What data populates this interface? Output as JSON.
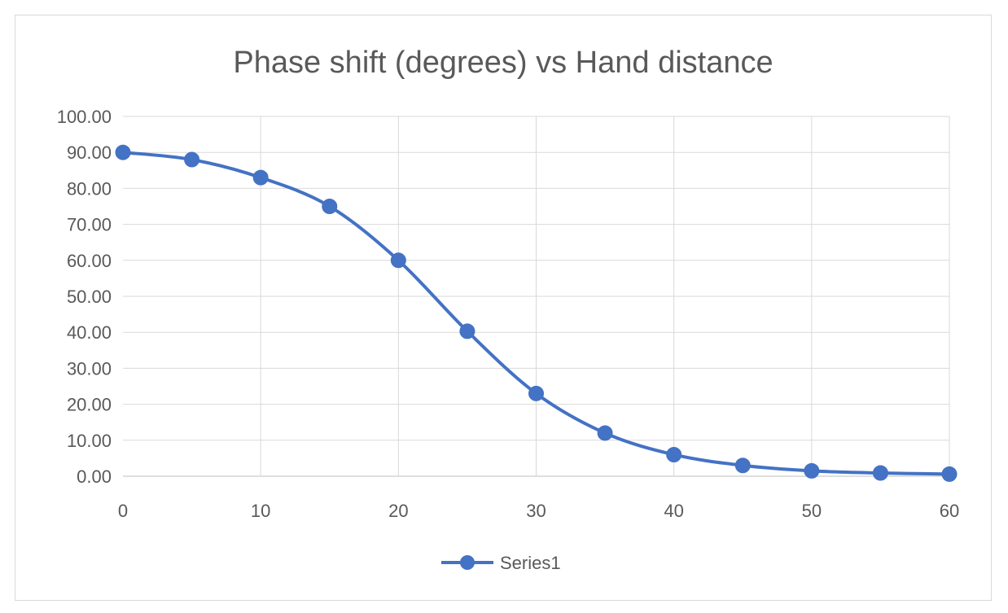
{
  "chart_data": {
    "type": "scatter",
    "title": "Phase shift (degrees) vs Hand distance",
    "xlabel": "",
    "ylabel": "",
    "xlim": [
      0,
      60
    ],
    "ylim": [
      0,
      100
    ],
    "x_ticks": [
      "0",
      "10",
      "20",
      "30",
      "40",
      "50",
      "60"
    ],
    "x_tick_values": [
      0,
      10,
      20,
      30,
      40,
      50,
      60
    ],
    "y_ticks": [
      "0.00",
      "10.00",
      "20.00",
      "30.00",
      "40.00",
      "50.00",
      "60.00",
      "70.00",
      "80.00",
      "90.00",
      "100.00"
    ],
    "y_tick_values": [
      0,
      10,
      20,
      30,
      40,
      50,
      60,
      70,
      80,
      90,
      100
    ],
    "grid": true,
    "smooth": true,
    "legend_position": "bottom",
    "series": [
      {
        "name": "Series1",
        "color": "#4472c4",
        "x": [
          0,
          5,
          10,
          15,
          20,
          25,
          30,
          35,
          40,
          45,
          50,
          55,
          60
        ],
        "y": [
          90.0,
          88.0,
          83.0,
          75.0,
          60.0,
          40.3,
          23.0,
          12.0,
          6.0,
          3.0,
          1.5,
          0.9,
          0.6
        ]
      }
    ]
  }
}
